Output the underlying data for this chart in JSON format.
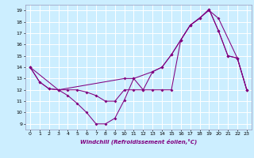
{
  "xlabel": "Windchill (Refroidissement éolien,°C)",
  "bg_color": "#cceeff",
  "grid_color": "#ffffff",
  "line_color": "#800080",
  "xlim": [
    -0.5,
    23.5
  ],
  "ylim": [
    8.5,
    19.5
  ],
  "yticks": [
    9,
    10,
    11,
    12,
    13,
    14,
    15,
    16,
    17,
    18,
    19
  ],
  "xticks": [
    0,
    1,
    2,
    3,
    4,
    5,
    6,
    7,
    8,
    9,
    10,
    11,
    12,
    13,
    14,
    15,
    16,
    17,
    18,
    19,
    20,
    21,
    22,
    23
  ],
  "line1_x": [
    0,
    1,
    2,
    3,
    4,
    5,
    6,
    7,
    8,
    9,
    10,
    11,
    12,
    13,
    14,
    15,
    16,
    17,
    18,
    19,
    20,
    21,
    22,
    23
  ],
  "line1_y": [
    14.0,
    12.7,
    12.1,
    12.0,
    11.5,
    10.8,
    10.0,
    9.0,
    9.0,
    9.5,
    11.1,
    13.0,
    12.0,
    13.6,
    14.0,
    15.1,
    16.4,
    17.7,
    18.3,
    19.1,
    17.2,
    15.0,
    14.8,
    12.0
  ],
  "line2_x": [
    0,
    1,
    2,
    3,
    4,
    5,
    6,
    7,
    8,
    9,
    10,
    11,
    12,
    13,
    14,
    15,
    16,
    17,
    18,
    19,
    20,
    21,
    22,
    23
  ],
  "line2_y": [
    14.0,
    12.7,
    12.1,
    12.0,
    12.0,
    12.0,
    11.8,
    11.5,
    11.0,
    11.0,
    12.0,
    12.0,
    12.0,
    12.0,
    12.0,
    12.0,
    16.4,
    17.7,
    18.3,
    19.1,
    17.2,
    15.0,
    14.8,
    12.0
  ],
  "line3_x": [
    0,
    3,
    10,
    11,
    13,
    14,
    15,
    16,
    17,
    19,
    20,
    22,
    23
  ],
  "line3_y": [
    14.0,
    12.0,
    13.0,
    13.0,
    13.6,
    14.0,
    15.1,
    16.4,
    17.7,
    19.0,
    18.3,
    14.8,
    12.0
  ]
}
